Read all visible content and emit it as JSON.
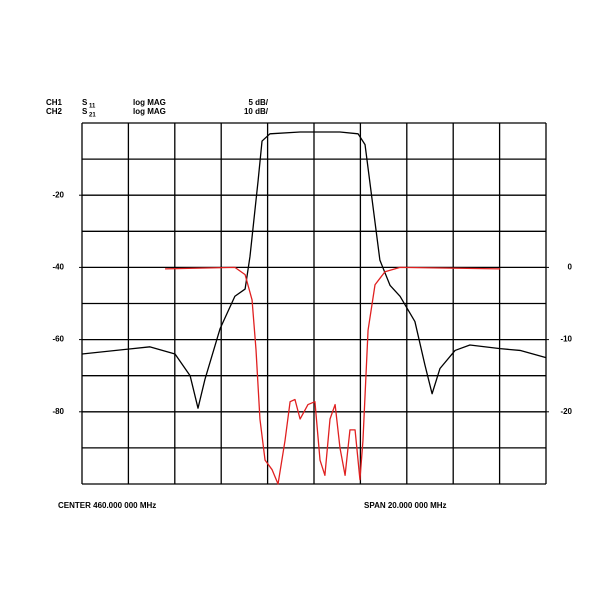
{
  "chart_data": {
    "type": "line",
    "header": [
      {
        "channel": "CH1",
        "param": "S",
        "sub": "11",
        "format": "log MAG",
        "scale": "5 dB/"
      },
      {
        "channel": "CH2",
        "param": "S",
        "sub": "21",
        "format": "log MAG",
        "scale": "10 dB/"
      }
    ],
    "center_label": "CENTER  460.000 000 MHz",
    "span_label": "SPAN  20.000 000 MHz",
    "xlim": [
      450,
      470
    ],
    "ylim": [
      -100,
      0
    ],
    "yticks": [
      -20,
      -40,
      -60,
      -80
    ],
    "y2lim": [
      -30,
      20
    ],
    "y2ticks": [
      0,
      -10,
      -20
    ],
    "grid": true,
    "series": [
      {
        "color": "#000000",
        "x": [
          450,
          452.93,
          454.01,
          454.66,
          455.0,
          455.3,
          455.95,
          456.59,
          457.03,
          457.24,
          457.59,
          457.76,
          458.1,
          459.4,
          461.12,
          461.9,
          462.2,
          462.5,
          462.84,
          463.28,
          463.71,
          464.35,
          464.78,
          465.09,
          465.43,
          466.08,
          466.72,
          468.02,
          468.88,
          470
        ],
        "values": [
          -64,
          -62,
          -64,
          -70,
          -79,
          -71,
          -57,
          -48,
          -46,
          -37,
          -16,
          -5,
          -3,
          -2.5,
          -2.5,
          -3,
          -6,
          -21,
          -38,
          -45,
          -48,
          -55,
          -67,
          -75,
          -68,
          -63,
          -61.5,
          -62.5,
          -63,
          -65
        ]
      },
      {
        "color": "#e02020",
        "axis": "y2",
        "x": [
          453.58,
          456.59,
          457.03,
          457.33,
          457.5,
          457.67,
          457.89,
          458.19,
          458.45,
          458.75,
          458.97,
          459.18,
          459.4,
          459.74,
          460.04,
          460.26,
          460.47,
          460.69,
          460.91,
          461.12,
          461.34,
          461.55,
          461.77,
          461.98,
          462.11,
          462.33,
          462.63,
          463.06,
          463.71,
          468.02
        ],
        "values": [
          -0.2,
          0,
          -1,
          -4.5,
          -11.4,
          -21,
          -26.7,
          -28,
          -30,
          -24,
          -18.6,
          -18.3,
          -21,
          -19,
          -18.6,
          -26.7,
          -28.8,
          -21,
          -19,
          -25,
          -28.8,
          -22.5,
          -22.5,
          -29.4,
          -24,
          -8.7,
          -2.4,
          -0.6,
          0,
          -0.2
        ]
      }
    ]
  }
}
